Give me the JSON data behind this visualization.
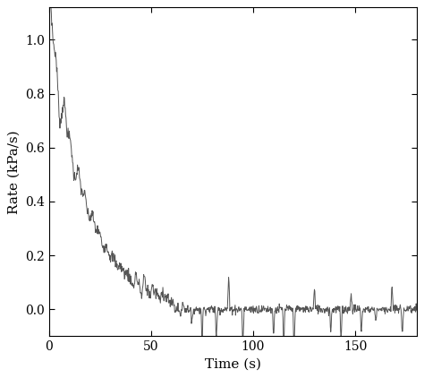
{
  "title": "",
  "xlabel": "Time (s)",
  "ylabel": "Rate (kPa/s)",
  "xlim": [
    0,
    180
  ],
  "ylim": [
    -0.1,
    1.12
  ],
  "yticks": [
    0.0,
    0.2,
    0.4,
    0.6,
    0.8,
    1.0
  ],
  "xticks": [
    0,
    50,
    100,
    150
  ],
  "line_color": "#555555",
  "line_width": 0.7,
  "bg_color": "#ffffff",
  "seed": 7
}
